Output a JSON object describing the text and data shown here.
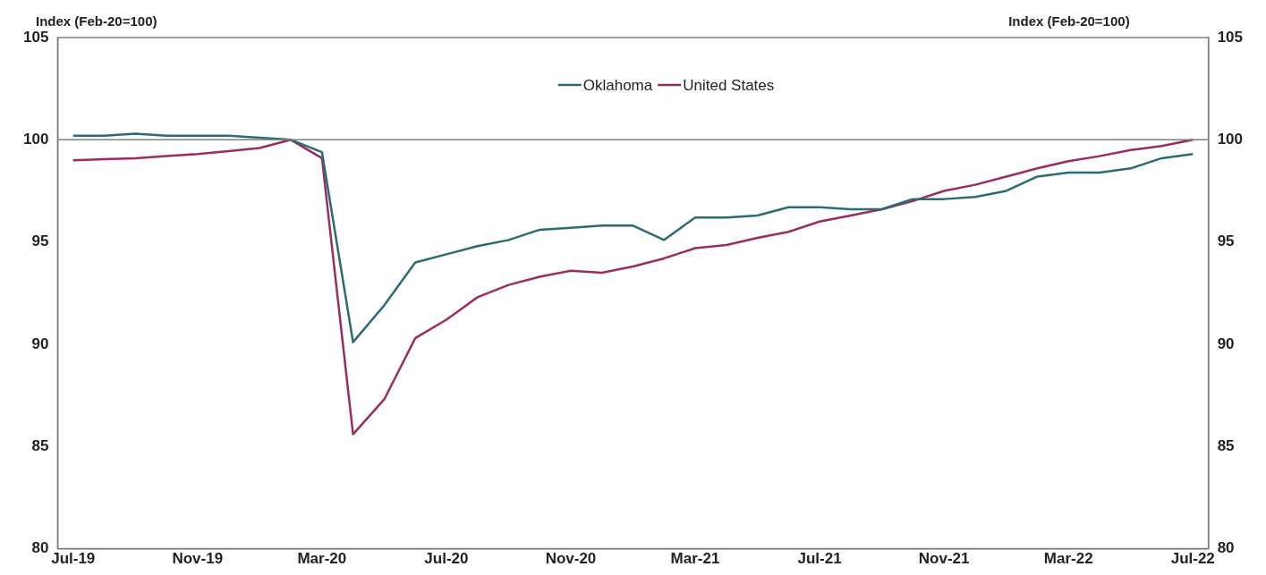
{
  "chart_data": {
    "type": "line",
    "ylabel": "Index (Feb-20=100)",
    "y2label": "Index (Feb-20=100)",
    "categories": [
      "Jul-19",
      null,
      null,
      null,
      "Nov-19",
      null,
      null,
      null,
      "Mar-20",
      null,
      null,
      null,
      "Jul-20",
      null,
      null,
      null,
      "Nov-20",
      null,
      null,
      null,
      "Mar-21",
      null,
      null,
      null,
      "Jul-21",
      null,
      null,
      null,
      "Nov-21",
      null,
      null,
      null,
      "Mar-22",
      null,
      null,
      null,
      "Jul-22"
    ],
    "series": [
      {
        "name": "Oklahoma",
        "color": "#2a6b74",
        "values": [
          100.2,
          100.2,
          100.3,
          100.2,
          100.2,
          100.2,
          100.1,
          100,
          99.4,
          90.1,
          91.9,
          94.0,
          94.4,
          94.8,
          95.1,
          95.6,
          95.7,
          95.8,
          95.8,
          95.1,
          96.2,
          96.2,
          96.3,
          96.7,
          96.7,
          96.6,
          96.6,
          97.1,
          97.1,
          97.2,
          97.5,
          98.2,
          98.4,
          98.4,
          98.6,
          99.1,
          99.3
        ]
      },
      {
        "name": "United States",
        "color": "#9b2d5e",
        "values": [
          99.0,
          99.05,
          99.1,
          99.2,
          99.3,
          99.45,
          99.6,
          100,
          99.1,
          85.6,
          87.3,
          90.3,
          91.2,
          92.3,
          92.9,
          93.3,
          93.6,
          93.5,
          93.8,
          94.2,
          94.7,
          94.85,
          95.2,
          95.5,
          96.0,
          96.3,
          96.6,
          97.0,
          97.5,
          97.8,
          98.2,
          98.6,
          98.95,
          99.2,
          99.5,
          99.7,
          100.0
        ]
      }
    ],
    "ylim": [
      80,
      105
    ],
    "yticks": [
      80,
      85,
      90,
      95,
      100,
      105
    ],
    "y2lim": [
      80,
      105
    ],
    "y2ticks": [
      80,
      85,
      90,
      95,
      100,
      105
    ],
    "ref_lines": [
      {
        "axis": "y",
        "value": 100,
        "color": "#808080"
      }
    ],
    "grid": false,
    "legend": "top",
    "marker": "none",
    "line_style": "solid"
  }
}
